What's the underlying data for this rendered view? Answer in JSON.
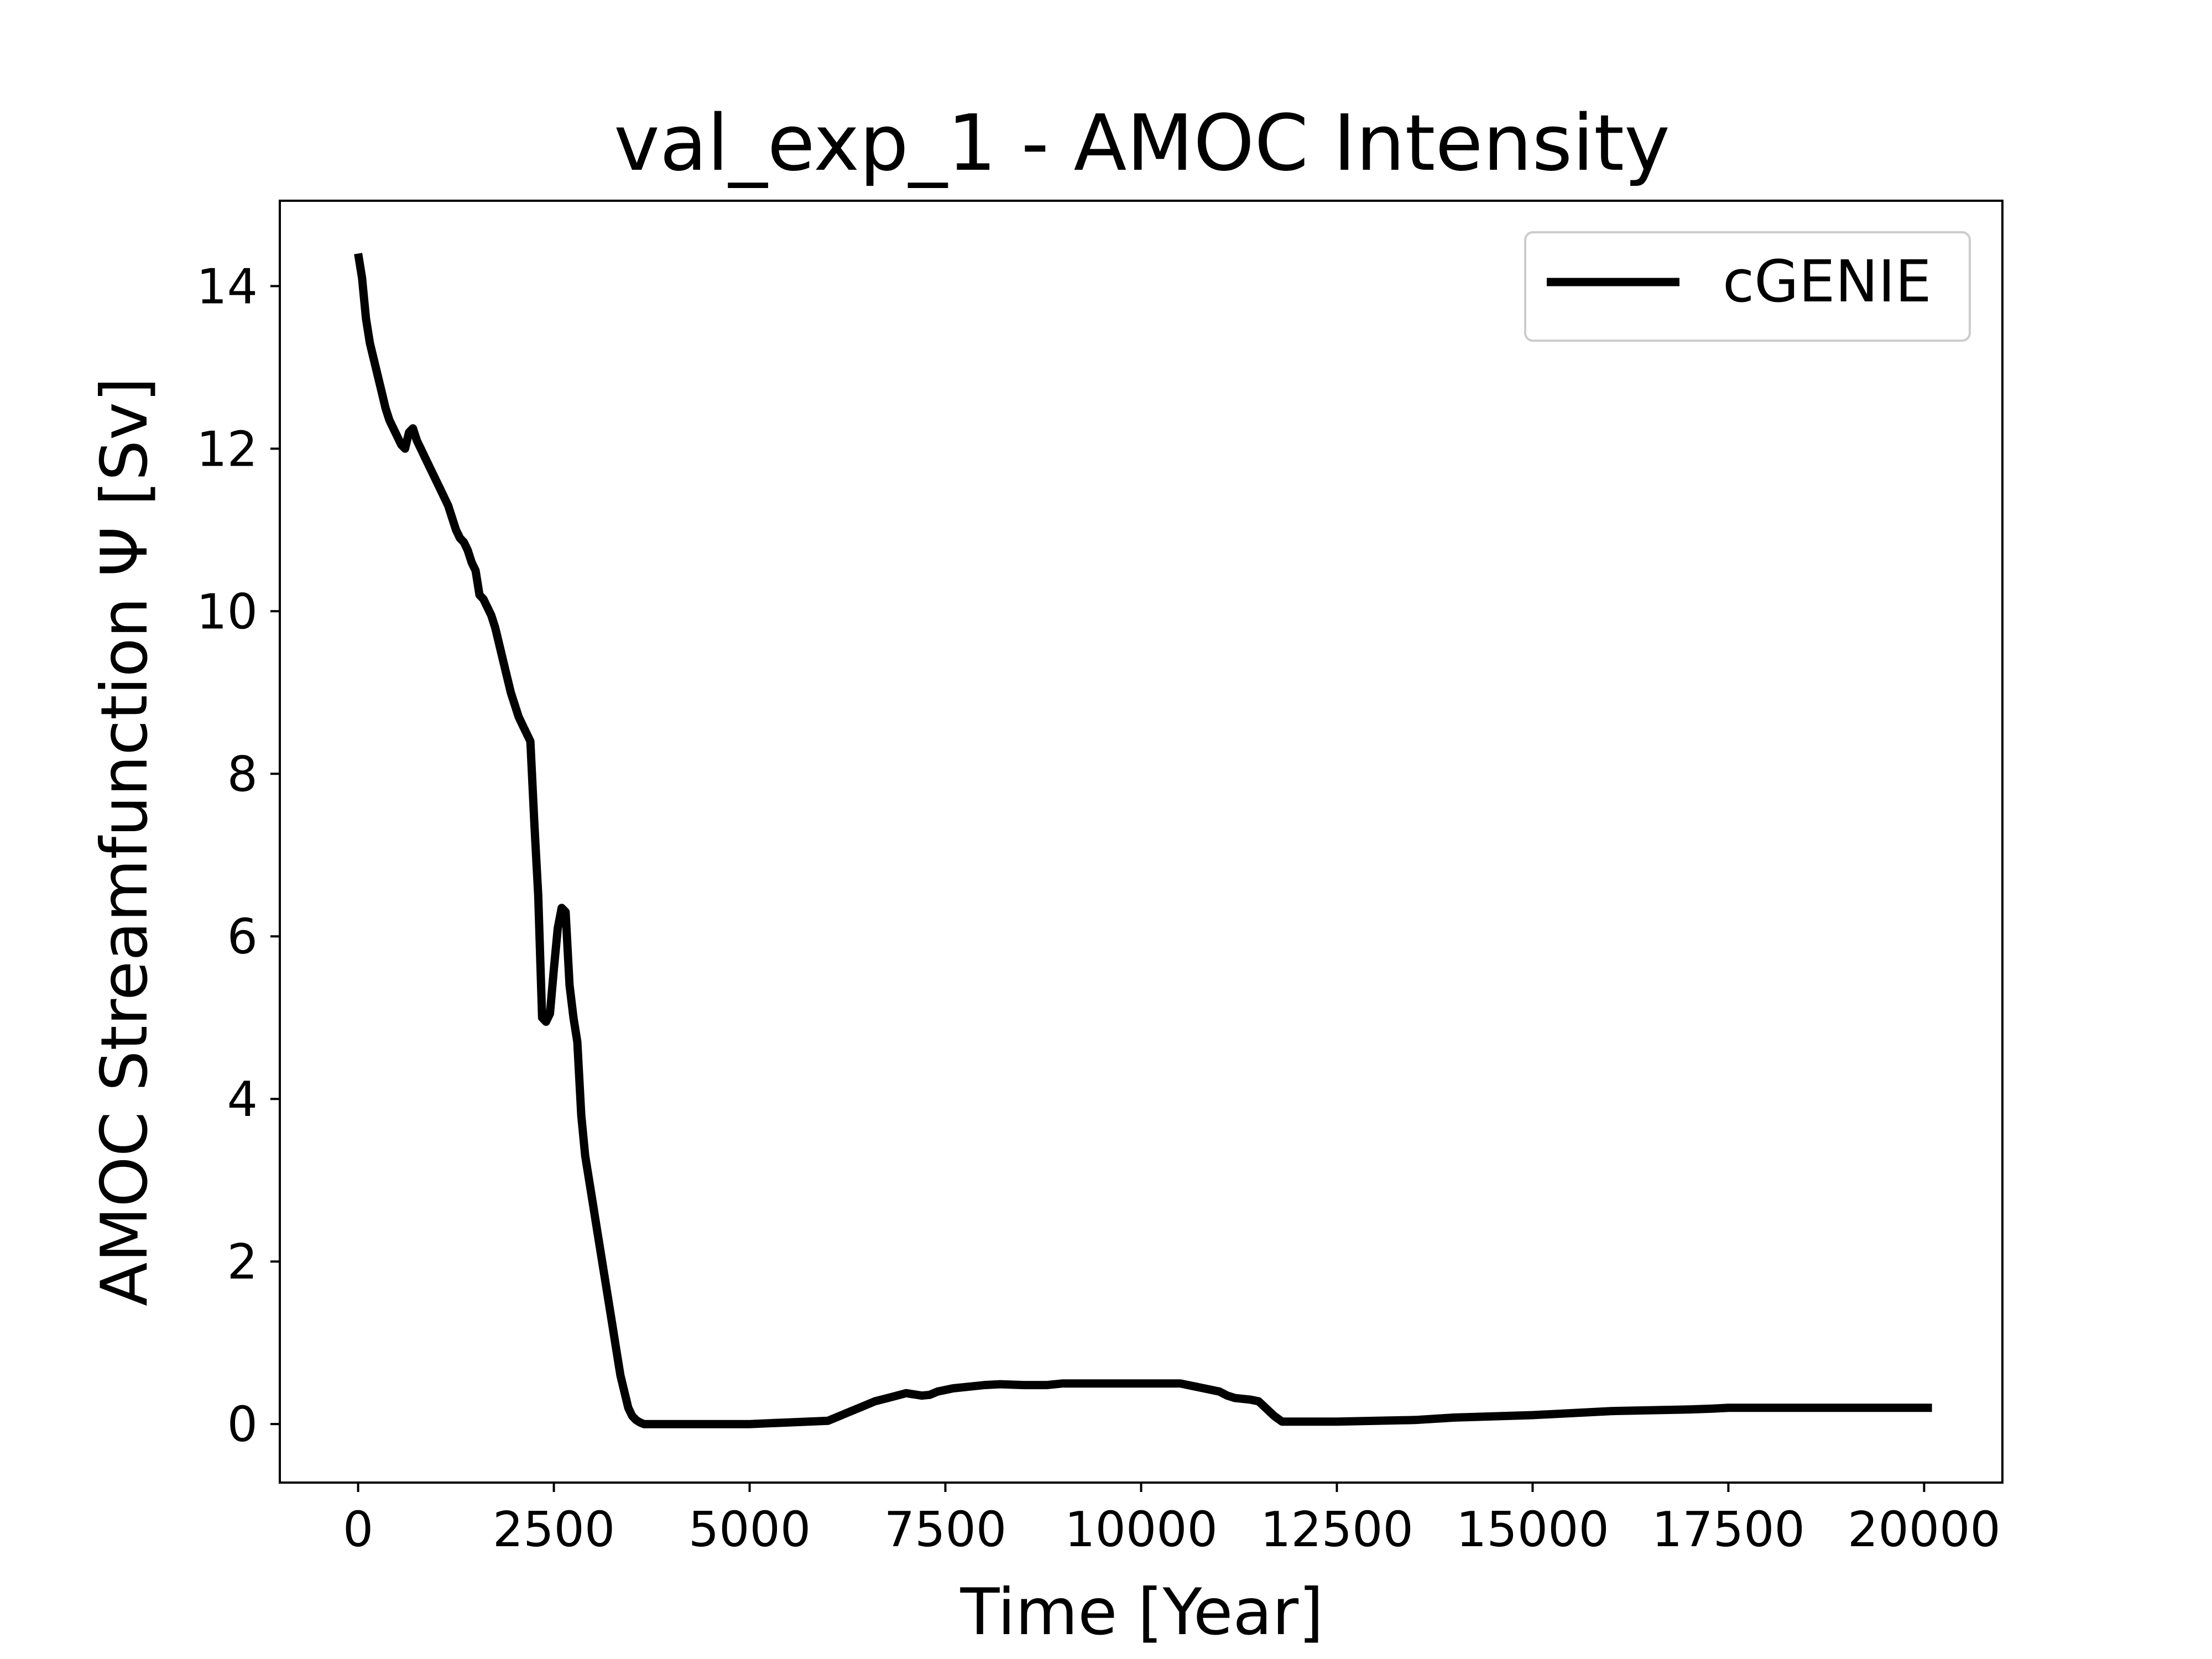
{
  "chart_data": {
    "type": "line",
    "title": "val_exp_1 - AMOC Intensity",
    "xlabel": "Time [Year]",
    "ylabel": "AMOC Streamfunction Ψ [Sv]",
    "xlim": [
      -1000,
      21000
    ],
    "ylim": [
      -0.72,
      15.05
    ],
    "xticks": [
      0,
      2500,
      5000,
      7500,
      10000,
      12500,
      15000,
      17500,
      20000
    ],
    "xtick_labels": [
      "0",
      "2500",
      "5000",
      "7500",
      "10000",
      "12500",
      "15000",
      "17500",
      "20000"
    ],
    "yticks": [
      0,
      2,
      4,
      6,
      8,
      10,
      12,
      14
    ],
    "ytick_labels": [
      "0",
      "2",
      "4",
      "6",
      "8",
      "10",
      "12",
      "14"
    ],
    "grid": false,
    "legend": {
      "position": "top-right",
      "entries": [
        "cGENIE"
      ]
    },
    "series": [
      {
        "name": "cGENIE",
        "color": "#000000",
        "x": [
          0,
          50,
          100,
          150,
          200,
          250,
          300,
          350,
          400,
          450,
          500,
          550,
          600,
          650,
          700,
          750,
          800,
          850,
          900,
          950,
          1000,
          1050,
          1100,
          1150,
          1200,
          1250,
          1300,
          1350,
          1400,
          1450,
          1500,
          1550,
          1600,
          1650,
          1700,
          1750,
          1800,
          1850,
          1900,
          1950,
          2000,
          2050,
          2100,
          2150,
          2200,
          2250,
          2300,
          2350,
          2400,
          2450,
          2500,
          2550,
          2600,
          2650,
          2700,
          2750,
          2800,
          2850,
          2900,
          2950,
          3000,
          3050,
          3100,
          3150,
          3200,
          3250,
          3300,
          3350,
          3400,
          3450,
          3500,
          3550,
          3600,
          3650,
          3700,
          3750,
          3800,
          3850,
          3900,
          3950,
          4000,
          4050,
          4100,
          4150,
          4200,
          4250,
          4300,
          4350,
          4400,
          4450,
          4500,
          4550,
          4600,
          4650,
          4700,
          4800,
          5000,
          5500,
          6000,
          6200,
          6400,
          6600,
          6800,
          7000,
          7200,
          7300,
          7400,
          7600,
          7800,
          8000,
          8200,
          8500,
          8800,
          9000,
          9500,
          10000,
          10500,
          11000,
          11100,
          11200,
          11400,
          11500,
          11700,
          11800,
          12000,
          12500,
          13000,
          13500,
          14000,
          15000,
          16000,
          17000,
          17300,
          17500,
          18000,
          18500,
          19000,
          19500,
          20000,
          20100
        ],
        "values": [
          14.4,
          14.1,
          13.6,
          13.3,
          13.1,
          12.9,
          12.7,
          12.5,
          12.35,
          12.25,
          12.15,
          12.05,
          12.0,
          12.2,
          12.25,
          12.1,
          12.0,
          11.9,
          11.8,
          11.7,
          11.6,
          11.5,
          11.4,
          11.3,
          11.15,
          11.0,
          10.9,
          10.85,
          10.75,
          10.6,
          10.5,
          10.2,
          10.15,
          10.05,
          9.95,
          9.8,
          9.6,
          9.4,
          9.2,
          9.0,
          8.85,
          8.7,
          8.6,
          8.5,
          8.4,
          7.4,
          6.5,
          5.0,
          4.95,
          5.05,
          5.6,
          6.1,
          6.35,
          6.3,
          5.4,
          5.0,
          4.7,
          3.8,
          3.3,
          3.0,
          2.7,
          2.4,
          2.1,
          1.8,
          1.5,
          1.2,
          0.9,
          0.6,
          0.4,
          0.2,
          0.1,
          0.05,
          0.02,
          0.0,
          0.0,
          0.0,
          0.0,
          0.0,
          0.0,
          0.0,
          0.0,
          0.0,
          0.0,
          0.0,
          0.0,
          0.0,
          0.0,
          0.0,
          0.0,
          0.0,
          0.0,
          0.0,
          0.0,
          0.0,
          0.0,
          0.0,
          0.0,
          0.02,
          0.04,
          0.12,
          0.2,
          0.28,
          0.33,
          0.38,
          0.35,
          0.36,
          0.4,
          0.44,
          0.46,
          0.48,
          0.49,
          0.48,
          0.48,
          0.5,
          0.5,
          0.5,
          0.5,
          0.4,
          0.35,
          0.32,
          0.3,
          0.28,
          0.1,
          0.03,
          0.03,
          0.03,
          0.04,
          0.05,
          0.08,
          0.11,
          0.16,
          0.18,
          0.19,
          0.2,
          0.2,
          0.2,
          0.2,
          0.2,
          0.2,
          0.2
        ]
      }
    ]
  }
}
